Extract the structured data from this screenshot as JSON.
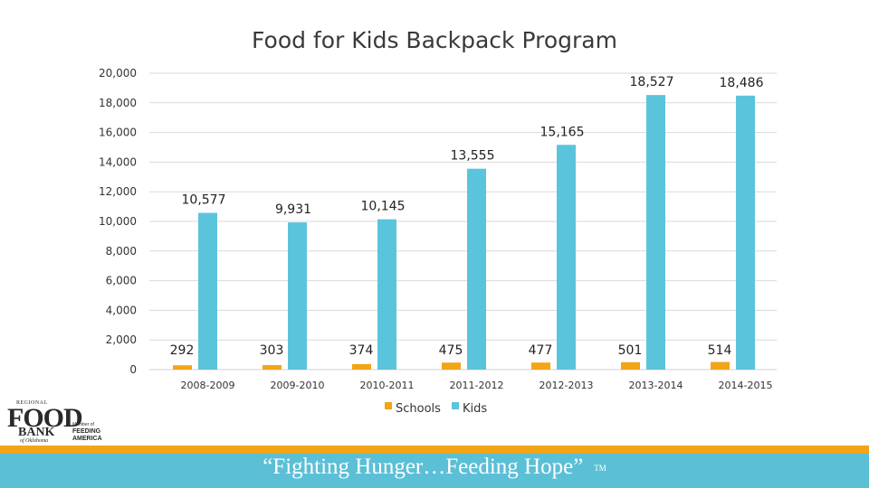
{
  "chart_data": {
    "type": "bar",
    "title": "Food for Kids Backpack Program",
    "categories": [
      "2008-2009",
      "2009-2010",
      "2010-2011",
      "2011-2012",
      "2012-2013",
      "2013-2014",
      "2014-2015"
    ],
    "series": [
      {
        "name": "Schools",
        "color": "#f2a516",
        "values": [
          292,
          303,
          374,
          475,
          477,
          501,
          514
        ]
      },
      {
        "name": "Kids",
        "color": "#5bc4dd",
        "values": [
          10577,
          9931,
          10145,
          13555,
          15165,
          18527,
          18486
        ]
      }
    ],
    "data_labels": {
      "Schools": [
        "292",
        "303",
        "374",
        "475",
        "477",
        "501",
        "514"
      ],
      "Kids": [
        "10,577",
        "9,931",
        "10,145",
        "13,555",
        "15,165",
        "18,527",
        "18,486"
      ]
    },
    "y_ticks": [
      0,
      2000,
      4000,
      6000,
      8000,
      10000,
      12000,
      14000,
      16000,
      18000,
      20000
    ],
    "y_tick_labels": [
      "0",
      "2,000",
      "4,000",
      "6,000",
      "8,000",
      "10,000",
      "12,000",
      "14,000",
      "16,000",
      "18,000",
      "20,000"
    ],
    "ylim": [
      0,
      20000
    ],
    "xlabel": "",
    "ylabel": "",
    "grid": true,
    "legend_position": "bottom"
  },
  "footer": {
    "slogan": "“Fighting Hunger…Feeding Hope”",
    "tm": "TM"
  },
  "logos": {
    "food_bank": {
      "top": "REGIONAL",
      "food": "FOOD",
      "bank": "BANK",
      "sub": "of Oklahoma"
    },
    "feeding_america": {
      "small": "Member of",
      "name1": "FEEDING",
      "name2": "AMERICA"
    }
  }
}
